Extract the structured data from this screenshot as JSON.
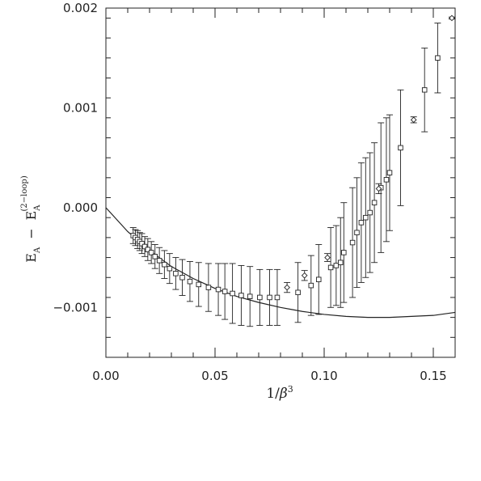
{
  "chart_data": {
    "type": "scatter",
    "title": "",
    "xlabel_prefix": "1/",
    "xlabel_symbol": "β",
    "xlabel_exp": "3",
    "ylabel_main": "E",
    "ylabel_sub": "A",
    "ylabel_minus": "−",
    "ylabel_ref_sub": "A",
    "ylabel_ref_sup": "(2−loop)",
    "xlim": [
      0.0,
      0.16
    ],
    "ylim": [
      -0.0015,
      0.002
    ],
    "x_ticks": [
      0.0,
      0.05,
      0.1,
      0.15
    ],
    "x_tick_labels": [
      "0.00",
      "0.05",
      "0.10",
      "0.15"
    ],
    "y_ticks": [
      -0.001,
      0.0,
      0.001,
      0.002
    ],
    "y_tick_labels": [
      "−0.001",
      "0.000",
      "0.001",
      "0.002"
    ],
    "grid": false,
    "series": [
      {
        "marker": "square",
        "points": [
          [
            0.0125,
            -0.00028,
            8e-05
          ],
          [
            0.0135,
            -0.0003,
            8e-05
          ],
          [
            0.0145,
            -0.00032,
            9e-05
          ],
          [
            0.0155,
            -0.00034,
            9e-05
          ],
          [
            0.0165,
            -0.00036,
            0.0001
          ],
          [
            0.0178,
            -0.00039,
            0.0001
          ],
          [
            0.0192,
            -0.00042,
            0.00011
          ],
          [
            0.0208,
            -0.00045,
            0.00011
          ],
          [
            0.0225,
            -0.00049,
            0.00012
          ],
          [
            0.0245,
            -0.00053,
            0.00013
          ],
          [
            0.0268,
            -0.00057,
            0.00014
          ],
          [
            0.0292,
            -0.00061,
            0.00015
          ],
          [
            0.032,
            -0.00066,
            0.00016
          ],
          [
            0.035,
            -0.0007,
            0.00018
          ],
          [
            0.0385,
            -0.00074,
            0.0002
          ],
          [
            0.0425,
            -0.00077,
            0.00022
          ],
          [
            0.047,
            -0.0008,
            0.00024
          ],
          [
            0.0515,
            -0.00082,
            0.00026
          ],
          [
            0.0545,
            -0.00084,
            0.00028
          ],
          [
            0.058,
            -0.00086,
            0.0003
          ],
          [
            0.062,
            -0.00088,
            0.0003
          ],
          [
            0.066,
            -0.00089,
            0.0003
          ],
          [
            0.0705,
            -0.0009,
            0.00028
          ],
          [
            0.075,
            -0.0009,
            0.00028
          ],
          [
            0.0785,
            -0.0009,
            0.00028
          ],
          [
            0.088,
            -0.00085,
            0.0003
          ],
          [
            0.094,
            -0.00078,
            0.0003
          ],
          [
            0.0975,
            -0.00072,
            0.00035
          ],
          [
            0.103,
            -0.0006,
            0.0004
          ],
          [
            0.1055,
            -0.00058,
            0.0004
          ],
          [
            0.1075,
            -0.00055,
            0.00045
          ],
          [
            0.109,
            -0.00045,
            0.0005
          ],
          [
            0.113,
            -0.00035,
            0.00055
          ],
          [
            0.115,
            -0.00025,
            0.00055
          ],
          [
            0.117,
            -0.00015,
            0.0006
          ],
          [
            0.119,
            -0.0001,
            0.0006
          ],
          [
            0.121,
            -5e-05,
            0.0006
          ],
          [
            0.123,
            5e-05,
            0.0006
          ],
          [
            0.126,
            0.0002,
            0.00065
          ],
          [
            0.1285,
            0.00028,
            0.00062
          ],
          [
            0.13,
            0.00035,
            0.00058
          ],
          [
            0.135,
            0.0006,
            0.00058
          ],
          [
            0.146,
            0.00118,
            0.00042
          ],
          [
            0.152,
            0.0015,
            0.00035
          ]
        ]
      },
      {
        "marker": "diamond",
        "points": [
          [
            0.083,
            -0.0008,
            5e-05
          ],
          [
            0.091,
            -0.00068,
            5e-05
          ],
          [
            0.1015,
            -0.0005,
            4e-05
          ],
          [
            0.125,
            0.00019,
            5e-05
          ],
          [
            0.141,
            0.00088,
            3e-05
          ],
          [
            0.1585,
            0.0019,
            1e-05
          ]
        ]
      }
    ],
    "curve_x": [
      0.0,
      0.01,
      0.02,
      0.03,
      0.04,
      0.05,
      0.06,
      0.07,
      0.08,
      0.09,
      0.1,
      0.11,
      0.12,
      0.13,
      0.14,
      0.15,
      0.16
    ],
    "curve_y": [
      0.0,
      -0.00024,
      -0.00043,
      -0.00059,
      -0.00071,
      -0.00081,
      -0.00089,
      -0.00095,
      -0.001,
      -0.00104,
      -0.00107,
      -0.00109,
      -0.0011,
      -0.0011,
      -0.00109,
      -0.00108,
      -0.00105
    ]
  }
}
